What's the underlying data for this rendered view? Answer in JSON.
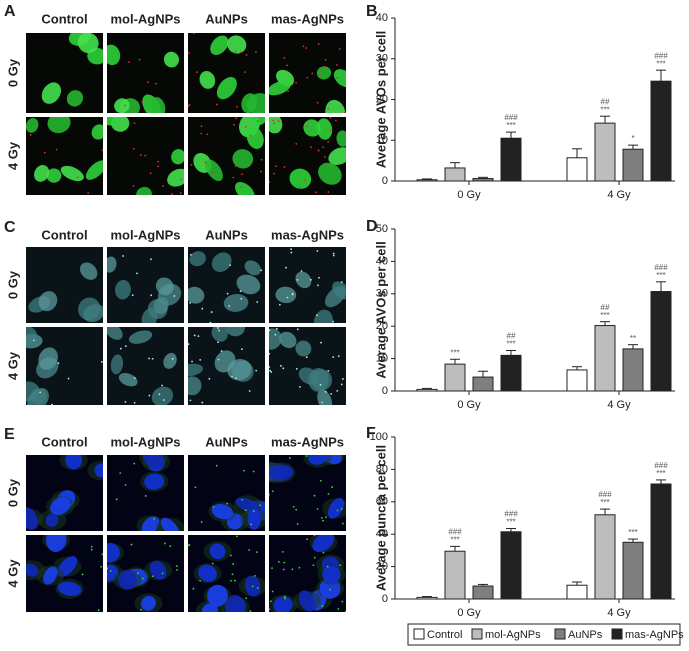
{
  "image_panels": [
    {
      "label": "A",
      "columns": [
        "Control",
        "mol-AgNPs",
        "AuNPs",
        "mas-AgNPs"
      ],
      "rows": [
        "0 Gy",
        "4 Gy"
      ]
    },
    {
      "label": "C",
      "columns": [
        "Control",
        "mol-AgNPs",
        "AuNPs",
        "mas-AgNPs"
      ],
      "rows": [
        "0 Gy",
        "4 Gy"
      ]
    },
    {
      "label": "E",
      "columns": [
        "Control",
        "mol-AgNPs",
        "AuNPs",
        "mas-AgNPs"
      ],
      "rows": [
        "0 Gy",
        "4 Gy"
      ]
    }
  ],
  "legend": [
    {
      "name": "Control",
      "color": "#ffffff"
    },
    {
      "name": "mol-AgNPs",
      "color": "#bdbdbd"
    },
    {
      "name": "AuNPs",
      "color": "#7f7f7f"
    },
    {
      "name": "mas-AgNPs",
      "color": "#222222"
    }
  ],
  "chart_data": [
    {
      "type": "bar",
      "label": "B",
      "y_label": "Average AVOs per cell",
      "categories": [
        "0 Gy",
        "4 Gy"
      ],
      "ylim": [
        0,
        40
      ],
      "yticks": [
        0,
        10,
        20,
        30,
        40
      ],
      "series": [
        {
          "values": [
            0.3,
            5.7
          ],
          "errors": [
            0.2,
            2.2
          ],
          "annotations": [
            [],
            []
          ]
        },
        {
          "values": [
            3.2,
            14.2
          ],
          "errors": [
            1.3,
            1.7
          ],
          "annotations": [
            [],
            [
              "##",
              "***"
            ]
          ]
        },
        {
          "values": [
            0.6,
            7.8
          ],
          "errors": [
            0.3,
            1.0
          ],
          "annotations": [
            [],
            [
              "*"
            ]
          ]
        },
        {
          "values": [
            10.5,
            24.5
          ],
          "errors": [
            1.5,
            2.7
          ],
          "annotations": [
            [
              "###",
              "***"
            ],
            [
              "###",
              "***"
            ]
          ]
        }
      ]
    },
    {
      "type": "bar",
      "label": "D",
      "y_label": "Average AVOs per cell",
      "categories": [
        "0 Gy",
        "4 Gy"
      ],
      "ylim": [
        0,
        50
      ],
      "yticks": [
        0,
        10,
        20,
        30,
        40,
        50
      ],
      "series": [
        {
          "values": [
            0.5,
            6.5
          ],
          "errors": [
            0.3,
            1.0
          ],
          "annotations": [
            [],
            []
          ]
        },
        {
          "values": [
            8.3,
            20.2
          ],
          "errors": [
            1.5,
            1.2
          ],
          "annotations": [
            [
              "***"
            ],
            [
              "##",
              "***"
            ]
          ]
        },
        {
          "values": [
            4.3,
            13
          ],
          "errors": [
            1.8,
            1.3
          ],
          "annotations": [
            [],
            [
              "**"
            ]
          ]
        },
        {
          "values": [
            11,
            30.7
          ],
          "errors": [
            1.5,
            3.0
          ],
          "annotations": [
            [
              "##",
              "***"
            ],
            [
              "###",
              "***"
            ]
          ]
        }
      ]
    },
    {
      "type": "bar",
      "label": "F",
      "y_label": "Average puncta per cell",
      "categories": [
        "0 Gy",
        "4 Gy"
      ],
      "ylim": [
        0,
        100
      ],
      "yticks": [
        0,
        20,
        40,
        60,
        80,
        100
      ],
      "series": [
        {
          "values": [
            1,
            8.5
          ],
          "errors": [
            0.5,
            2.0
          ],
          "annotations": [
            [],
            []
          ]
        },
        {
          "values": [
            29.5,
            52
          ],
          "errors": [
            3.0,
            3.5
          ],
          "annotations": [
            [
              "###",
              "***"
            ],
            [
              "###",
              "***"
            ]
          ]
        },
        {
          "values": [
            8,
            35
          ],
          "errors": [
            1.0,
            2.0
          ],
          "annotations": [
            [],
            [
              "***"
            ]
          ]
        },
        {
          "values": [
            41.5,
            71
          ],
          "errors": [
            2.0,
            2.5
          ],
          "annotations": [
            [
              "###",
              "***"
            ],
            [
              "###",
              "***"
            ]
          ]
        }
      ]
    }
  ]
}
